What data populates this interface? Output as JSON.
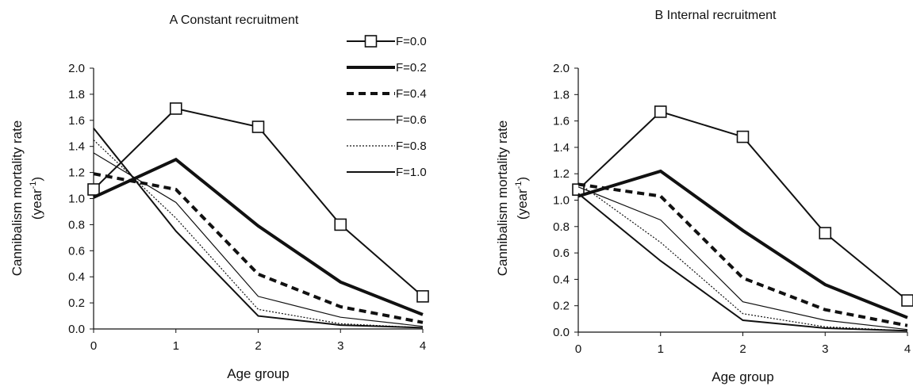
{
  "chart_data": [
    {
      "type": "line",
      "title": "A  Constant recruitment",
      "xlabel": "Age group",
      "ylabel": "Cannibalism mortality rate",
      "ylabel_unit": "(year",
      "ylabel_unit_sup": "-1",
      "ylabel_unit_close": ")",
      "categories": [
        "0",
        "1",
        "2",
        "3",
        "4"
      ],
      "ylim": [
        0,
        2.0
      ],
      "yticks": [
        "0.0",
        "0.2",
        "0.4",
        "0.6",
        "0.8",
        "1.0",
        "1.2",
        "1.4",
        "1.6",
        "1.8",
        "2.0"
      ],
      "legend_position": "top-right",
      "series": [
        {
          "name": "F=0.0",
          "values": [
            1.07,
            1.69,
            1.55,
            0.8,
            0.25
          ]
        },
        {
          "name": "F=0.2",
          "values": [
            1.01,
            1.3,
            0.79,
            0.36,
            0.11
          ]
        },
        {
          "name": "F=0.4",
          "values": [
            1.19,
            1.07,
            0.42,
            0.17,
            0.05
          ]
        },
        {
          "name": "F=0.6",
          "values": [
            1.35,
            0.97,
            0.25,
            0.09,
            0.02
          ]
        },
        {
          "name": "F=0.8",
          "values": [
            1.45,
            0.85,
            0.15,
            0.04,
            0.01
          ]
        },
        {
          "name": "F=1.0",
          "values": [
            1.54,
            0.75,
            0.1,
            0.03,
            0.01
          ]
        }
      ]
    },
    {
      "type": "line",
      "title": "B  Internal recruitment",
      "xlabel": "Age group",
      "ylabel": "Cannibalism mortality rate",
      "ylabel_unit": "(year",
      "ylabel_unit_sup": "-1",
      "ylabel_unit_close": ")",
      "categories": [
        "0",
        "1",
        "2",
        "3",
        "4"
      ],
      "ylim": [
        0,
        2.0
      ],
      "yticks": [
        "0.0",
        "0.2",
        "0.4",
        "0.6",
        "0.8",
        "1.0",
        "1.2",
        "1.4",
        "1.6",
        "1.8",
        "2.0"
      ],
      "series": [
        {
          "name": "F=0.0",
          "values": [
            1.08,
            1.67,
            1.48,
            0.75,
            0.24
          ]
        },
        {
          "name": "F=0.2",
          "values": [
            1.03,
            1.22,
            0.77,
            0.36,
            0.11
          ]
        },
        {
          "name": "F=0.4",
          "values": [
            1.12,
            1.03,
            0.41,
            0.17,
            0.05
          ]
        },
        {
          "name": "F=0.6",
          "values": [
            1.1,
            0.85,
            0.23,
            0.09,
            0.02
          ]
        },
        {
          "name": "F=0.8",
          "values": [
            1.13,
            0.68,
            0.14,
            0.04,
            0.01
          ]
        },
        {
          "name": "F=1.0",
          "values": [
            1.05,
            0.54,
            0.09,
            0.03,
            0.01
          ]
        }
      ]
    }
  ]
}
